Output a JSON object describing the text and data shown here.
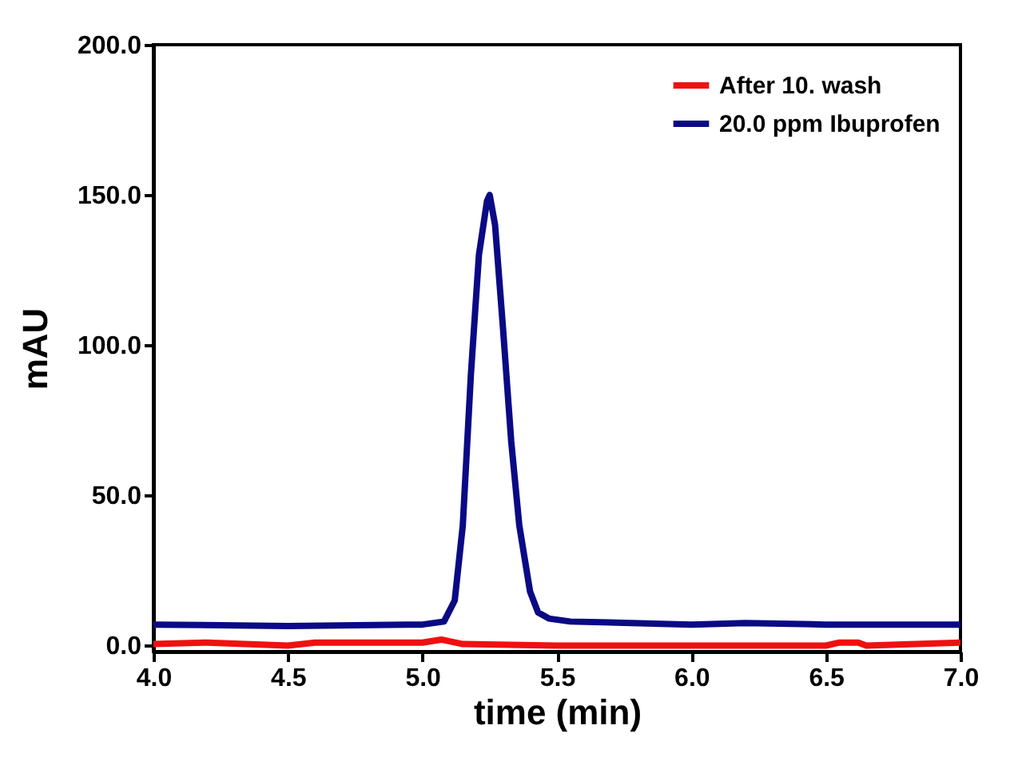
{
  "chart_data": {
    "type": "line",
    "xlabel": "time (min)",
    "ylabel": "mAU",
    "xlim": [
      4.0,
      7.0
    ],
    "xticks": [
      {
        "value": 4,
        "label": "4.0"
      },
      {
        "value": 4.5,
        "label": "4.5"
      },
      {
        "value": 5,
        "label": "5.0"
      },
      {
        "value": 5.5,
        "label": "5.5"
      },
      {
        "value": 6,
        "label": "6.0"
      },
      {
        "value": 6.5,
        "label": "6.5"
      },
      {
        "value": 7,
        "label": "7.0"
      }
    ],
    "ylim": [
      -2,
      200
    ],
    "yticks": [
      {
        "value": 0,
        "label": "0.0"
      },
      {
        "value": 50,
        "label": "50.0"
      },
      {
        "value": 100,
        "label": "100.0"
      },
      {
        "value": 150,
        "label": "150.0"
      },
      {
        "value": 200,
        "label": "200.0"
      }
    ],
    "legend": "top right",
    "grid": false,
    "line_style": "solid",
    "marker": "none",
    "series": [
      {
        "name": "After 10. wash",
        "color": "#ee1111",
        "x": [
          4.0,
          4.2,
          4.5,
          4.6,
          5.0,
          5.07,
          5.15,
          5.5,
          6.0,
          6.5,
          6.55,
          6.62,
          6.65,
          7.0
        ],
        "values": [
          0.5,
          1,
          0,
          1,
          1,
          2,
          0.5,
          0,
          0,
          0,
          1,
          1,
          0,
          1
        ]
      },
      {
        "name": "20.0 ppm Ibuprofen",
        "color": "#0a0a85",
        "x": [
          4.0,
          4.5,
          5.0,
          5.08,
          5.12,
          5.15,
          5.18,
          5.21,
          5.24,
          5.25,
          5.27,
          5.3,
          5.33,
          5.36,
          5.4,
          5.43,
          5.47,
          5.55,
          6.0,
          6.2,
          6.5,
          7.0
        ],
        "values": [
          7,
          6.5,
          7,
          8,
          15,
          40,
          90,
          130,
          148,
          150,
          140,
          105,
          68,
          40,
          18,
          11,
          9,
          8,
          7,
          7.5,
          7,
          7
        ]
      }
    ]
  }
}
